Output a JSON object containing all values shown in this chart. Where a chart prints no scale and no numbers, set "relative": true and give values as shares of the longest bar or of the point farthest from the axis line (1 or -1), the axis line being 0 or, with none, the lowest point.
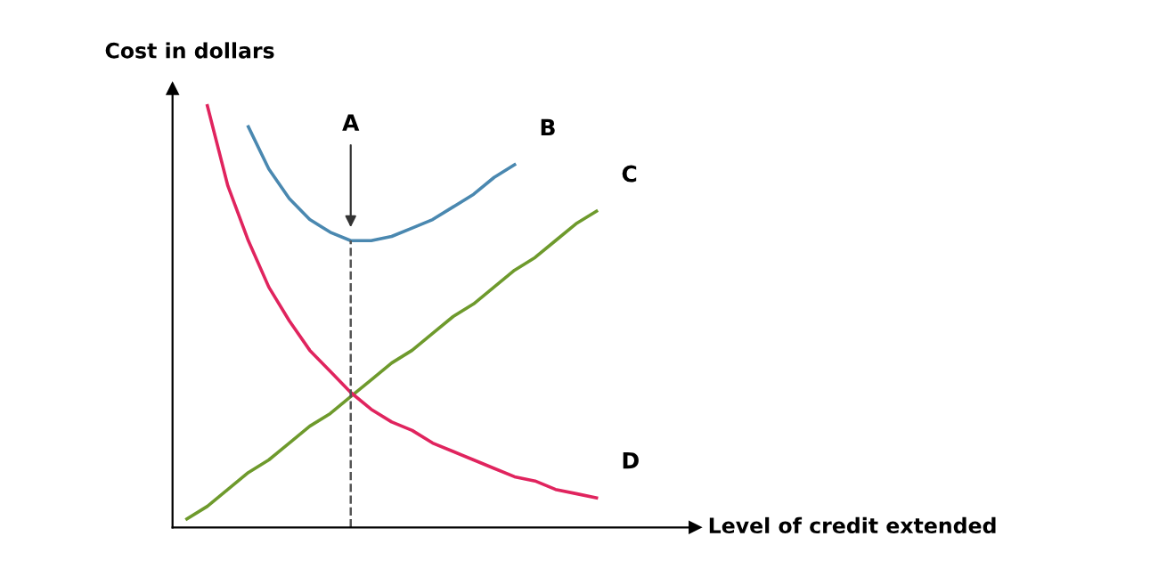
{
  "chart_data": {
    "type": "line",
    "relative": true,
    "xlabel": "Level of credit extended",
    "ylabel": "Cost in dollars",
    "categories": [
      null,
      null,
      null,
      null,
      null,
      null,
      null,
      null,
      null,
      null,
      null,
      null,
      null,
      null,
      null,
      null,
      null,
      null,
      null,
      null,
      null
    ],
    "series": [
      {
        "name": "B",
        "color": "#4a88b0",
        "values": [
          null,
          null,
          null,
          0.95,
          0.85,
          0.78,
          0.73,
          0.7,
          0.68,
          0.68,
          0.69,
          0.71,
          0.73,
          0.76,
          0.79,
          0.83,
          0.86,
          null,
          null,
          null,
          null
        ]
      },
      {
        "name": "C",
        "color": "#6e9a2c",
        "values": [
          0.02,
          0.05,
          0.09,
          0.13,
          0.16,
          0.2,
          0.24,
          0.27,
          0.31,
          0.35,
          0.39,
          0.42,
          0.46,
          0.5,
          0.53,
          0.57,
          0.61,
          0.64,
          0.68,
          0.72,
          0.75
        ]
      },
      {
        "name": "D",
        "color": "#e0245e",
        "values": [
          null,
          1,
          0.81,
          0.68,
          0.57,
          0.49,
          0.42,
          0.37,
          0.32,
          0.28,
          0.25,
          0.23,
          0.2,
          0.18,
          0.16,
          0.14,
          0.12,
          0.11,
          0.09,
          0.08,
          0.07
        ]
      }
    ],
    "annotations": [
      "A"
    ],
    "legend": false,
    "marker": "none",
    "line_style": "solid"
  }
}
